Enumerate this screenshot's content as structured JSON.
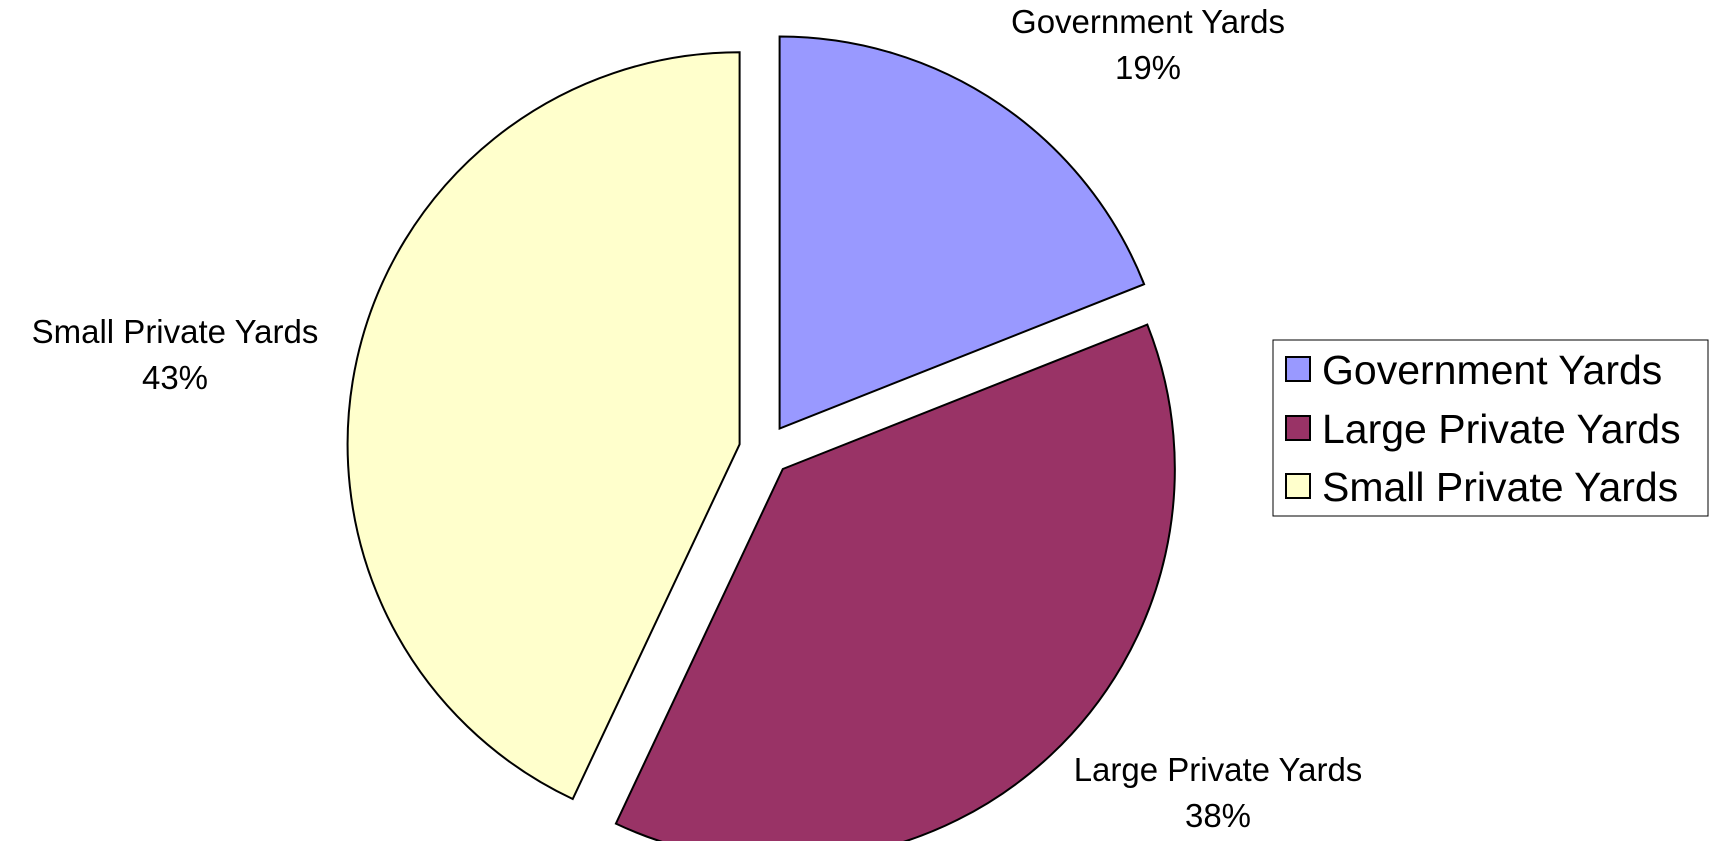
{
  "chart_data": {
    "type": "pie",
    "title": "",
    "categories": [
      "Government Yards",
      "Large Private Yards",
      "Small Private Yards"
    ],
    "values": [
      19,
      38,
      43
    ],
    "value_unit": "%",
    "start_angle_deg": 0,
    "direction": "clockwise",
    "all_slices_exploded": true,
    "colors": [
      "#9999FF",
      "#993366",
      "#FFFFCC"
    ],
    "legend": {
      "position": "right",
      "entries": [
        "Government Yards",
        "Large Private Yards",
        "Small Private Yards"
      ]
    },
    "slice_labels": [
      {
        "name": "Government Yards",
        "value": "19%"
      },
      {
        "name": "Large Private Yards",
        "value": "38%"
      },
      {
        "name": "Small Private Yards",
        "value": "43%"
      }
    ]
  }
}
